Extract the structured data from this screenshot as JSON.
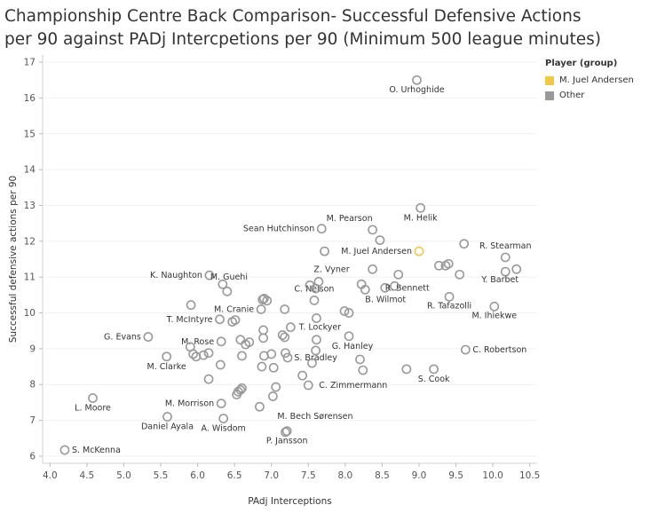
{
  "title": {
    "line1": "Championship Centre Back Comparison- Successful Defensive Actions",
    "line2": "per 90 against PADj Intercpetions per 90 (Minimum 500 league minutes)"
  },
  "legend": {
    "title": "Player (group)",
    "items": [
      {
        "label": "M. Juel Andersen",
        "color": "#f2c744"
      },
      {
        "label": "Other",
        "color": "#999999"
      }
    ]
  },
  "chart_data": {
    "type": "scatter",
    "xlabel": "PAdj Interceptions",
    "ylabel": "Successful defensive actions per 90",
    "xlim": [
      3.9,
      10.6
    ],
    "ylim": [
      5.8,
      17.2
    ],
    "xticks": [
      "4.0",
      "4.5",
      "5.0",
      "5.5",
      "6.0",
      "6.5",
      "7.0",
      "7.5",
      "8.0",
      "8.5",
      "9.0",
      "9.5",
      "10.0",
      "10.5"
    ],
    "yticks": [
      "6",
      "7",
      "8",
      "9",
      "10",
      "11",
      "12",
      "13",
      "14",
      "15",
      "16",
      "17"
    ],
    "points": [
      {
        "x": 8.97,
        "y": 16.5,
        "label": "O. Urhoghide",
        "group": "Other"
      },
      {
        "x": 9.02,
        "y": 12.93,
        "label": "M. Helik",
        "group": "Other"
      },
      {
        "x": 8.37,
        "y": 12.32,
        "label": "M. Pearson",
        "group": "Other"
      },
      {
        "x": 7.68,
        "y": 12.35,
        "label": "Sean Hutchinson",
        "group": "Other"
      },
      {
        "x": 10.17,
        "y": 11.55,
        "label": "R. Stearman",
        "group": "Other"
      },
      {
        "x": 9.0,
        "y": 11.72,
        "label": "M. Juel Andersen",
        "group": "M. Juel Andersen"
      },
      {
        "x": 8.37,
        "y": 11.22,
        "label": "Z. Vyner",
        "group": "Other"
      },
      {
        "x": 6.16,
        "y": 11.05,
        "label": "K. Naughton",
        "group": "Other"
      },
      {
        "x": 6.34,
        "y": 10.8,
        "label": "M. Guehi",
        "group": "Other"
      },
      {
        "x": 10.17,
        "y": 11.15,
        "label": "Y. Barbet",
        "group": "Other"
      },
      {
        "x": 8.54,
        "y": 10.7,
        "label": "R. Bennett",
        "group": "Other"
      },
      {
        "x": 8.27,
        "y": 10.65,
        "label": "B. Wilmot",
        "group": "Other"
      },
      {
        "x": 9.41,
        "y": 10.45,
        "label": "R. Tafazolli",
        "group": "Other"
      },
      {
        "x": 7.58,
        "y": 10.35,
        "label": "C. Nelson",
        "group": "Other"
      },
      {
        "x": 6.86,
        "y": 10.1,
        "label": "M. Cranie",
        "group": "Other"
      },
      {
        "x": 10.02,
        "y": 10.18,
        "label": "M. Ihiekwe",
        "group": "Other"
      },
      {
        "x": 6.3,
        "y": 9.82,
        "label": "T. McIntyre",
        "group": "Other"
      },
      {
        "x": 7.61,
        "y": 9.85,
        "label": "T. Lockyer",
        "group": "Other"
      },
      {
        "x": 5.33,
        "y": 9.33,
        "label": "G. Evans",
        "group": "Other"
      },
      {
        "x": 6.32,
        "y": 9.2,
        "label": "M. Rose",
        "group": "Other"
      },
      {
        "x": 8.05,
        "y": 9.35,
        "label": "G. Hanley",
        "group": "Other"
      },
      {
        "x": 9.63,
        "y": 8.97,
        "label": "C. Robertson",
        "group": "Other"
      },
      {
        "x": 7.6,
        "y": 8.95,
        "label": "S. Bradley",
        "group": "Other"
      },
      {
        "x": 5.58,
        "y": 8.78,
        "label": "M. Clarke",
        "group": "Other"
      },
      {
        "x": 9.2,
        "y": 8.43,
        "label": "S. Cook",
        "group": "Other"
      },
      {
        "x": 7.5,
        "y": 7.98,
        "label": "C. Zimmermann",
        "group": "Other"
      },
      {
        "x": 4.58,
        "y": 7.62,
        "label": "L. Moore",
        "group": "Other"
      },
      {
        "x": 6.32,
        "y": 7.47,
        "label": "M. Morrison",
        "group": "Other"
      },
      {
        "x": 6.84,
        "y": 7.38,
        "label": "M. Bech Sørensen",
        "group": "Other"
      },
      {
        "x": 5.59,
        "y": 7.1,
        "label": "Daniel Ayala",
        "group": "Other"
      },
      {
        "x": 6.35,
        "y": 7.05,
        "label": "A. Wisdom",
        "group": "Other"
      },
      {
        "x": 7.21,
        "y": 6.7,
        "label": "P. Jansson",
        "group": "Other"
      },
      {
        "x": 4.2,
        "y": 6.17,
        "label": "S. McKenna",
        "group": "Other"
      },
      {
        "x": 7.72,
        "y": 11.72,
        "label": "",
        "group": "Other"
      },
      {
        "x": 8.47,
        "y": 12.03,
        "label": "",
        "group": "Other"
      },
      {
        "x": 9.61,
        "y": 11.93,
        "label": "",
        "group": "Other"
      },
      {
        "x": 10.32,
        "y": 11.22,
        "label": "",
        "group": "Other"
      },
      {
        "x": 9.55,
        "y": 11.07,
        "label": "",
        "group": "Other"
      },
      {
        "x": 9.27,
        "y": 11.32,
        "label": "",
        "group": "Other"
      },
      {
        "x": 9.36,
        "y": 11.32,
        "label": "",
        "group": "Other"
      },
      {
        "x": 9.4,
        "y": 11.37,
        "label": "",
        "group": "Other"
      },
      {
        "x": 8.72,
        "y": 11.07,
        "label": "",
        "group": "Other"
      },
      {
        "x": 7.52,
        "y": 10.77,
        "label": "",
        "group": "Other"
      },
      {
        "x": 7.64,
        "y": 10.87,
        "label": "",
        "group": "Other"
      },
      {
        "x": 7.6,
        "y": 10.68,
        "label": "",
        "group": "Other"
      },
      {
        "x": 8.22,
        "y": 10.8,
        "label": "",
        "group": "Other"
      },
      {
        "x": 8.67,
        "y": 10.75,
        "label": "",
        "group": "Other"
      },
      {
        "x": 6.4,
        "y": 10.6,
        "label": "",
        "group": "Other"
      },
      {
        "x": 6.88,
        "y": 10.37,
        "label": "",
        "group": "Other"
      },
      {
        "x": 6.9,
        "y": 10.4,
        "label": "",
        "group": "Other"
      },
      {
        "x": 6.94,
        "y": 10.34,
        "label": "",
        "group": "Other"
      },
      {
        "x": 5.91,
        "y": 10.22,
        "label": "",
        "group": "Other"
      },
      {
        "x": 7.18,
        "y": 10.1,
        "label": "",
        "group": "Other"
      },
      {
        "x": 7.99,
        "y": 10.05,
        "label": "",
        "group": "Other"
      },
      {
        "x": 8.05,
        "y": 10.0,
        "label": "",
        "group": "Other"
      },
      {
        "x": 6.47,
        "y": 9.75,
        "label": "",
        "group": "Other"
      },
      {
        "x": 6.51,
        "y": 9.8,
        "label": "",
        "group": "Other"
      },
      {
        "x": 6.89,
        "y": 9.52,
        "label": "",
        "group": "Other"
      },
      {
        "x": 7.26,
        "y": 9.6,
        "label": "",
        "group": "Other"
      },
      {
        "x": 6.89,
        "y": 9.3,
        "label": "",
        "group": "Other"
      },
      {
        "x": 7.15,
        "y": 9.38,
        "label": "",
        "group": "Other"
      },
      {
        "x": 7.18,
        "y": 9.32,
        "label": "",
        "group": "Other"
      },
      {
        "x": 6.58,
        "y": 9.25,
        "label": "",
        "group": "Other"
      },
      {
        "x": 6.65,
        "y": 9.12,
        "label": "",
        "group": "Other"
      },
      {
        "x": 6.7,
        "y": 9.18,
        "label": "",
        "group": "Other"
      },
      {
        "x": 7.61,
        "y": 9.25,
        "label": "",
        "group": "Other"
      },
      {
        "x": 5.9,
        "y": 9.05,
        "label": "",
        "group": "Other"
      },
      {
        "x": 5.94,
        "y": 8.85,
        "label": "",
        "group": "Other"
      },
      {
        "x": 5.98,
        "y": 8.78,
        "label": "",
        "group": "Other"
      },
      {
        "x": 6.08,
        "y": 8.82,
        "label": "",
        "group": "Other"
      },
      {
        "x": 6.15,
        "y": 8.88,
        "label": "",
        "group": "Other"
      },
      {
        "x": 6.6,
        "y": 8.8,
        "label": "",
        "group": "Other"
      },
      {
        "x": 6.9,
        "y": 8.8,
        "label": "",
        "group": "Other"
      },
      {
        "x": 7.0,
        "y": 8.85,
        "label": "",
        "group": "Other"
      },
      {
        "x": 7.19,
        "y": 8.88,
        "label": "",
        "group": "Other"
      },
      {
        "x": 7.22,
        "y": 8.75,
        "label": "",
        "group": "Other"
      },
      {
        "x": 8.2,
        "y": 8.7,
        "label": "",
        "group": "Other"
      },
      {
        "x": 6.31,
        "y": 8.55,
        "label": "",
        "group": "Other"
      },
      {
        "x": 6.87,
        "y": 8.5,
        "label": "",
        "group": "Other"
      },
      {
        "x": 7.03,
        "y": 8.47,
        "label": "",
        "group": "Other"
      },
      {
        "x": 7.55,
        "y": 8.6,
        "label": "",
        "group": "Other"
      },
      {
        "x": 8.24,
        "y": 8.4,
        "label": "",
        "group": "Other"
      },
      {
        "x": 8.83,
        "y": 8.43,
        "label": "",
        "group": "Other"
      },
      {
        "x": 6.15,
        "y": 8.15,
        "label": "",
        "group": "Other"
      },
      {
        "x": 7.42,
        "y": 8.25,
        "label": "",
        "group": "Other"
      },
      {
        "x": 6.55,
        "y": 7.8,
        "label": "",
        "group": "Other"
      },
      {
        "x": 6.58,
        "y": 7.85,
        "label": "",
        "group": "Other"
      },
      {
        "x": 6.6,
        "y": 7.9,
        "label": "",
        "group": "Other"
      },
      {
        "x": 6.53,
        "y": 7.72,
        "label": "",
        "group": "Other"
      },
      {
        "x": 7.06,
        "y": 7.93,
        "label": "",
        "group": "Other"
      },
      {
        "x": 7.02,
        "y": 7.67,
        "label": "",
        "group": "Other"
      },
      {
        "x": 7.19,
        "y": 6.67,
        "label": "",
        "group": "Other"
      }
    ]
  }
}
